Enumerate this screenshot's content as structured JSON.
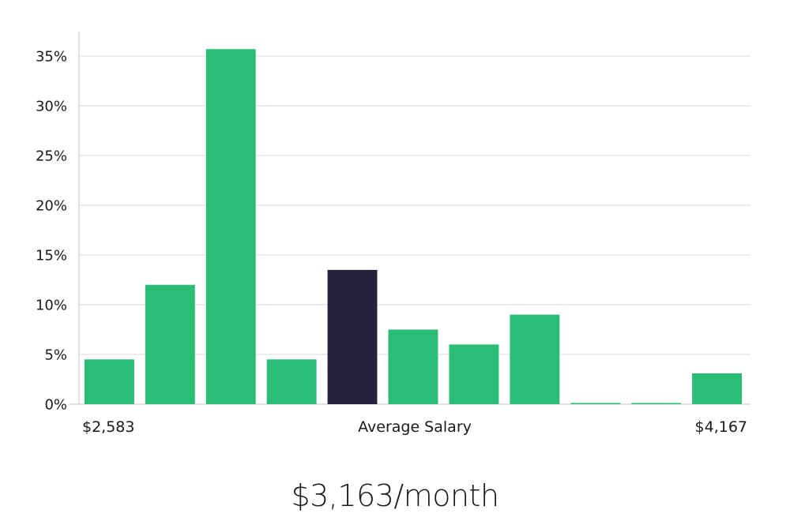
{
  "chart_data": {
    "type": "bar",
    "y_unit": "%",
    "ylim": [
      0,
      35
    ],
    "y_ticks": [
      0,
      5,
      10,
      15,
      20,
      25,
      30,
      35
    ],
    "grid": true,
    "values": [
      4.5,
      12,
      35.7,
      4.5,
      13.5,
      7.5,
      6,
      9,
      0.1,
      0.1,
      3.1
    ],
    "highlight_index": 4,
    "x_labels": {
      "left": "$2,583",
      "center": "Average Salary",
      "right": "$4,167"
    },
    "colors": {
      "bar": "#2bbd76",
      "highlight": "#27233f",
      "grid": "#e2e2e2",
      "axis": "#d0d0d0"
    }
  },
  "summary": {
    "salary_text": "$3,163/month"
  }
}
